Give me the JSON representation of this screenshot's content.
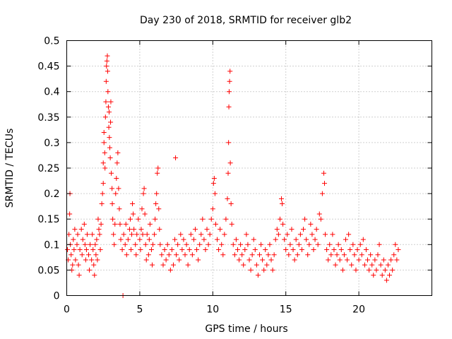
{
  "chart_data": {
    "type": "scatter",
    "title": "Day 230 of 2018, SRMTID for receiver glb2",
    "xlabel": "GPS time / hours",
    "ylabel": "SRMTID / TECUs",
    "xlim": [
      0,
      25
    ],
    "ylim": [
      0,
      0.5
    ],
    "xticks": [
      0,
      5,
      10,
      15,
      20
    ],
    "xtick_labels": [
      "0",
      "5",
      "10",
      "15",
      "20"
    ],
    "yticks": [
      0,
      0.05,
      0.1,
      0.15,
      0.2,
      0.25,
      0.3,
      0.35,
      0.4,
      0.45,
      0.5
    ],
    "ytick_labels": [
      "0",
      "0.05",
      "0.1",
      "0.15",
      "0.2",
      "0.25",
      "0.3",
      "0.35",
      "0.4",
      "0.45",
      "0.5"
    ],
    "grid": true,
    "marker": "plus",
    "color": "#ff0000",
    "series": [
      {
        "name": "SRMTID",
        "points": [
          [
            0.05,
            0.09
          ],
          [
            0.1,
            0.07
          ],
          [
            0.15,
            0.12
          ],
          [
            0.2,
            0.16
          ],
          [
            0.22,
            0.2
          ],
          [
            0.25,
            0.1
          ],
          [
            0.3,
            0.08
          ],
          [
            0.35,
            0.05
          ],
          [
            0.4,
            0.06
          ],
          [
            0.45,
            0.11
          ],
          [
            0.5,
            0.09
          ],
          [
            0.55,
            0.13
          ],
          [
            0.6,
            0.07
          ],
          [
            0.7,
            0.1
          ],
          [
            0.75,
            0.12
          ],
          [
            0.8,
            0.06
          ],
          [
            0.85,
            0.04
          ],
          [
            0.9,
            0.09
          ],
          [
            1.0,
            0.13
          ],
          [
            1.05,
            0.08
          ],
          [
            1.1,
            0.11
          ],
          [
            1.2,
            0.14
          ],
          [
            1.25,
            0.1
          ],
          [
            1.3,
            0.07
          ],
          [
            1.35,
            0.09
          ],
          [
            1.4,
            0.12
          ],
          [
            1.5,
            0.08
          ],
          [
            1.55,
            0.05
          ],
          [
            1.6,
            0.1
          ],
          [
            1.7,
            0.07
          ],
          [
            1.75,
            0.12
          ],
          [
            1.8,
            0.09
          ],
          [
            1.85,
            0.06
          ],
          [
            1.9,
            0.04
          ],
          [
            1.95,
            0.1
          ],
          [
            2.0,
            0.08
          ],
          [
            2.05,
            0.11
          ],
          [
            2.1,
            0.07
          ],
          [
            2.15,
            0.15
          ],
          [
            2.2,
            0.13
          ],
          [
            2.25,
            0.12
          ],
          [
            2.3,
            0.09
          ],
          [
            2.35,
            0.14
          ],
          [
            2.4,
            0.18
          ],
          [
            2.45,
            0.2
          ],
          [
            2.5,
            0.22
          ],
          [
            2.5,
            0.26
          ],
          [
            2.55,
            0.3
          ],
          [
            2.55,
            0.32
          ],
          [
            2.6,
            0.28
          ],
          [
            2.62,
            0.25
          ],
          [
            2.65,
            0.35
          ],
          [
            2.68,
            0.38
          ],
          [
            2.7,
            0.42
          ],
          [
            2.72,
            0.45
          ],
          [
            2.75,
            0.46
          ],
          [
            2.78,
            0.47
          ],
          [
            2.8,
            0.44
          ],
          [
            2.82,
            0.4
          ],
          [
            2.85,
            0.37
          ],
          [
            2.88,
            0.33
          ],
          [
            2.9,
            0.36
          ],
          [
            2.92,
            0.31
          ],
          [
            2.95,
            0.29
          ],
          [
            2.98,
            0.27
          ],
          [
            3.0,
            0.34
          ],
          [
            3.02,
            0.38
          ],
          [
            3.05,
            0.24
          ],
          [
            3.1,
            0.21
          ],
          [
            3.12,
            0.18
          ],
          [
            3.15,
            0.15
          ],
          [
            3.2,
            0.12
          ],
          [
            3.25,
            0.1
          ],
          [
            3.3,
            0.14
          ],
          [
            3.35,
            0.2
          ],
          [
            3.4,
            0.23
          ],
          [
            3.45,
            0.26
          ],
          [
            3.5,
            0.28
          ],
          [
            3.55,
            0.21
          ],
          [
            3.6,
            0.17
          ],
          [
            3.65,
            0.14
          ],
          [
            3.7,
            0.11
          ],
          [
            3.8,
            0.09
          ],
          [
            3.85,
            0.0
          ],
          [
            3.9,
            0.12
          ],
          [
            4.0,
            0.1
          ],
          [
            4.05,
            0.14
          ],
          [
            4.1,
            0.08
          ],
          [
            4.2,
            0.11
          ],
          [
            4.3,
            0.13
          ],
          [
            4.35,
            0.15
          ],
          [
            4.4,
            0.09
          ],
          [
            4.45,
            0.12
          ],
          [
            4.5,
            0.18
          ],
          [
            4.55,
            0.16
          ],
          [
            4.6,
            0.13
          ],
          [
            4.7,
            0.1
          ],
          [
            4.75,
            0.08
          ],
          [
            4.8,
            0.12
          ],
          [
            4.9,
            0.15
          ],
          [
            5.0,
            0.11
          ],
          [
            5.05,
            0.09
          ],
          [
            5.1,
            0.13
          ],
          [
            5.15,
            0.17
          ],
          [
            5.2,
            0.12
          ],
          [
            5.25,
            0.2
          ],
          [
            5.3,
            0.21
          ],
          [
            5.35,
            0.16
          ],
          [
            5.4,
            0.1
          ],
          [
            5.45,
            0.07
          ],
          [
            5.5,
            0.12
          ],
          [
            5.6,
            0.08
          ],
          [
            5.65,
            0.11
          ],
          [
            5.7,
            0.14
          ],
          [
            5.8,
            0.09
          ],
          [
            5.85,
            0.06
          ],
          [
            5.9,
            0.1
          ],
          [
            6.0,
            0.12
          ],
          [
            6.05,
            0.15
          ],
          [
            6.1,
            0.18
          ],
          [
            6.15,
            0.2
          ],
          [
            6.2,
            0.24
          ],
          [
            6.25,
            0.25
          ],
          [
            6.3,
            0.17
          ],
          [
            6.35,
            0.13
          ],
          [
            6.4,
            0.1
          ],
          [
            6.5,
            0.08
          ],
          [
            6.6,
            0.06
          ],
          [
            6.7,
            0.09
          ],
          [
            6.8,
            0.07
          ],
          [
            6.9,
            0.1
          ],
          [
            7.0,
            0.08
          ],
          [
            7.1,
            0.05
          ],
          [
            7.2,
            0.09
          ],
          [
            7.3,
            0.06
          ],
          [
            7.4,
            0.11
          ],
          [
            7.45,
            0.27
          ],
          [
            7.5,
            0.08
          ],
          [
            7.6,
            0.1
          ],
          [
            7.7,
            0.07
          ],
          [
            7.8,
            0.12
          ],
          [
            7.9,
            0.09
          ],
          [
            8.0,
            0.11
          ],
          [
            8.1,
            0.08
          ],
          [
            8.2,
            0.1
          ],
          [
            8.3,
            0.06
          ],
          [
            8.4,
            0.09
          ],
          [
            8.5,
            0.12
          ],
          [
            8.6,
            0.08
          ],
          [
            8.7,
            0.11
          ],
          [
            8.8,
            0.13
          ],
          [
            8.9,
            0.09
          ],
          [
            9.0,
            0.07
          ],
          [
            9.1,
            0.1
          ],
          [
            9.2,
            0.12
          ],
          [
            9.3,
            0.15
          ],
          [
            9.4,
            0.11
          ],
          [
            9.5,
            0.09
          ],
          [
            9.6,
            0.13
          ],
          [
            9.7,
            0.1
          ],
          [
            9.8,
            0.12
          ],
          [
            9.9,
            0.15
          ],
          [
            10.0,
            0.17
          ],
          [
            10.05,
            0.22
          ],
          [
            10.1,
            0.23
          ],
          [
            10.15,
            0.2
          ],
          [
            10.2,
            0.14
          ],
          [
            10.3,
            0.11
          ],
          [
            10.4,
            0.09
          ],
          [
            10.5,
            0.13
          ],
          [
            10.6,
            0.1
          ],
          [
            10.7,
            0.08
          ],
          [
            10.8,
            0.12
          ],
          [
            10.9,
            0.15
          ],
          [
            11.0,
            0.19
          ],
          [
            11.05,
            0.24
          ],
          [
            11.08,
            0.3
          ],
          [
            11.1,
            0.37
          ],
          [
            11.12,
            0.4
          ],
          [
            11.15,
            0.42
          ],
          [
            11.18,
            0.44
          ],
          [
            11.2,
            0.26
          ],
          [
            11.25,
            0.18
          ],
          [
            11.3,
            0.14
          ],
          [
            11.4,
            0.1
          ],
          [
            11.5,
            0.08
          ],
          [
            11.6,
            0.11
          ],
          [
            11.7,
            0.09
          ],
          [
            11.8,
            0.07
          ],
          [
            11.9,
            0.1
          ],
          [
            12.0,
            0.08
          ],
          [
            12.1,
            0.06
          ],
          [
            12.2,
            0.09
          ],
          [
            12.3,
            0.12
          ],
          [
            12.4,
            0.1
          ],
          [
            12.5,
            0.07
          ],
          [
            12.6,
            0.05
          ],
          [
            12.7,
            0.08
          ],
          [
            12.8,
            0.11
          ],
          [
            12.9,
            0.09
          ],
          [
            13.0,
            0.06
          ],
          [
            13.1,
            0.04
          ],
          [
            13.2,
            0.08
          ],
          [
            13.3,
            0.1
          ],
          [
            13.4,
            0.07
          ],
          [
            13.5,
            0.05
          ],
          [
            13.6,
            0.09
          ],
          [
            13.7,
            0.06
          ],
          [
            13.8,
            0.08
          ],
          [
            13.9,
            0.1
          ],
          [
            14.0,
            0.07
          ],
          [
            14.1,
            0.05
          ],
          [
            14.2,
            0.08
          ],
          [
            14.3,
            0.11
          ],
          [
            14.4,
            0.13
          ],
          [
            14.5,
            0.12
          ],
          [
            14.6,
            0.15
          ],
          [
            14.7,
            0.19
          ],
          [
            14.75,
            0.18
          ],
          [
            14.8,
            0.14
          ],
          [
            14.9,
            0.11
          ],
          [
            15.0,
            0.09
          ],
          [
            15.1,
            0.12
          ],
          [
            15.2,
            0.08
          ],
          [
            15.3,
            0.1
          ],
          [
            15.4,
            0.13
          ],
          [
            15.5,
            0.09
          ],
          [
            15.6,
            0.07
          ],
          [
            15.7,
            0.11
          ],
          [
            15.8,
            0.08
          ],
          [
            15.9,
            0.1
          ],
          [
            16.0,
            0.12
          ],
          [
            16.1,
            0.09
          ],
          [
            16.2,
            0.13
          ],
          [
            16.3,
            0.15
          ],
          [
            16.4,
            0.11
          ],
          [
            16.5,
            0.08
          ],
          [
            16.6,
            0.1
          ],
          [
            16.7,
            0.14
          ],
          [
            16.8,
            0.12
          ],
          [
            16.9,
            0.09
          ],
          [
            17.0,
            0.11
          ],
          [
            17.1,
            0.13
          ],
          [
            17.2,
            0.1
          ],
          [
            17.3,
            0.16
          ],
          [
            17.4,
            0.15
          ],
          [
            17.5,
            0.2
          ],
          [
            17.6,
            0.24
          ],
          [
            17.65,
            0.22
          ],
          [
            17.7,
            0.12
          ],
          [
            17.8,
            0.09
          ],
          [
            17.9,
            0.07
          ],
          [
            18.0,
            0.1
          ],
          [
            18.1,
            0.08
          ],
          [
            18.2,
            0.12
          ],
          [
            18.3,
            0.09
          ],
          [
            18.4,
            0.06
          ],
          [
            18.5,
            0.08
          ],
          [
            18.6,
            0.1
          ],
          [
            18.7,
            0.07
          ],
          [
            18.8,
            0.09
          ],
          [
            18.9,
            0.05
          ],
          [
            19.0,
            0.08
          ],
          [
            19.1,
            0.11
          ],
          [
            19.2,
            0.07
          ],
          [
            19.3,
            0.12
          ],
          [
            19.4,
            0.09
          ],
          [
            19.5,
            0.06
          ],
          [
            19.6,
            0.1
          ],
          [
            19.7,
            0.08
          ],
          [
            19.8,
            0.05
          ],
          [
            19.9,
            0.09
          ],
          [
            20.0,
            0.07
          ],
          [
            20.1,
            0.1
          ],
          [
            20.2,
            0.08
          ],
          [
            20.3,
            0.11
          ],
          [
            20.4,
            0.06
          ],
          [
            20.5,
            0.09
          ],
          [
            20.6,
            0.07
          ],
          [
            20.7,
            0.05
          ],
          [
            20.8,
            0.08
          ],
          [
            20.9,
            0.06
          ],
          [
            21.0,
            0.04
          ],
          [
            21.1,
            0.07
          ],
          [
            21.2,
            0.05
          ],
          [
            21.3,
            0.08
          ],
          [
            21.4,
            0.1
          ],
          [
            21.5,
            0.06
          ],
          [
            21.6,
            0.04
          ],
          [
            21.7,
            0.07
          ],
          [
            21.8,
            0.05
          ],
          [
            21.9,
            0.03
          ],
          [
            22.0,
            0.06
          ],
          [
            22.1,
            0.04
          ],
          [
            22.2,
            0.07
          ],
          [
            22.3,
            0.05
          ],
          [
            22.4,
            0.08
          ],
          [
            22.5,
            0.1
          ],
          [
            22.6,
            0.07
          ],
          [
            22.7,
            0.09
          ]
        ]
      }
    ]
  }
}
